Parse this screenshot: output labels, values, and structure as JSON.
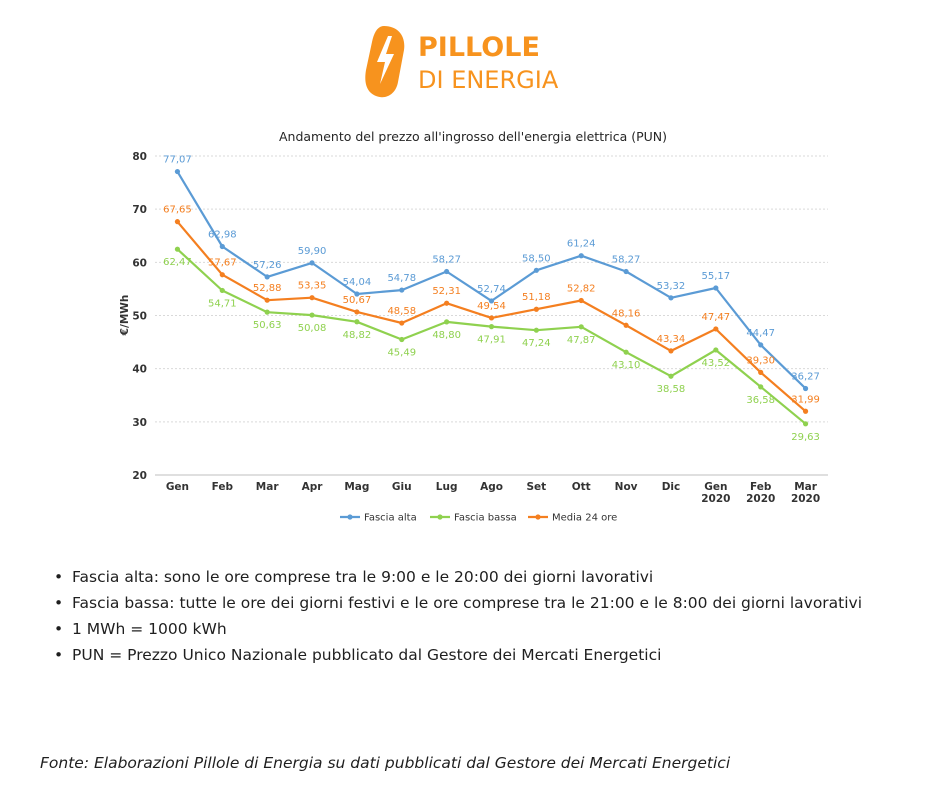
{
  "logo": {
    "line1": "PILLOLE",
    "line2": "DI ENERGIA",
    "brand_color": "#f7931e",
    "icon": "lightning-bolt-icon"
  },
  "chart_data": {
    "type": "line",
    "title": "Andamento del prezzo all'ingrosso dell'energia elettrica (PUN)",
    "ylabel": "€/MWh",
    "xlabel": "",
    "ylim": [
      20,
      80
    ],
    "yticks": [
      20,
      30,
      40,
      50,
      60,
      70,
      80
    ],
    "grid": true,
    "legend_position": "bottom",
    "categories": [
      [
        "Gen"
      ],
      [
        "Feb"
      ],
      [
        "Mar"
      ],
      [
        "Apr"
      ],
      [
        "Mag"
      ],
      [
        "Giu"
      ],
      [
        "Lug"
      ],
      [
        "Ago"
      ],
      [
        "Set"
      ],
      [
        "Ott"
      ],
      [
        "Nov"
      ],
      [
        "Dic"
      ],
      [
        "Gen",
        "2020"
      ],
      [
        "Feb",
        "2020"
      ],
      [
        "Mar",
        "2020"
      ]
    ],
    "series": [
      {
        "name": "Fascia alta",
        "color": "#5b9bd5",
        "values": [
          77.07,
          62.98,
          57.26,
          59.9,
          54.04,
          54.78,
          58.27,
          52.74,
          58.5,
          61.24,
          58.27,
          53.32,
          55.17,
          44.47,
          36.27
        ],
        "labels": [
          "77,07",
          "62,98",
          "57,26",
          "59,90",
          "54,04",
          "54,78",
          "58,27",
          "52,74",
          "58,50",
          "61,24",
          "58,27",
          "53,32",
          "55,17",
          "44,47",
          "36,27"
        ]
      },
      {
        "name": "Fascia bassa",
        "color": "#8fd14f",
        "values": [
          62.47,
          54.71,
          50.63,
          50.08,
          48.82,
          45.49,
          48.8,
          47.91,
          47.24,
          47.87,
          43.1,
          38.58,
          43.52,
          36.58,
          29.63
        ],
        "labels": [
          "62,47",
          "54,71",
          "50,63",
          "50,08",
          "48,82",
          "45,49",
          "48,80",
          "47,91",
          "47,24",
          "47,87",
          "43,10",
          "38,58",
          "43,52",
          "36,58",
          "29,63"
        ]
      },
      {
        "name": "Media 24 ore",
        "color": "#f47f20",
        "values": [
          67.65,
          57.67,
          52.88,
          53.35,
          50.67,
          48.58,
          52.31,
          49.54,
          51.18,
          52.82,
          48.16,
          43.34,
          47.47,
          39.3,
          31.99
        ],
        "labels": [
          "67,65",
          "57,67",
          "52,88",
          "53,35",
          "50,67",
          "48,58",
          "52,31",
          "49,54",
          "51,18",
          "52,82",
          "48,16",
          "43,34",
          "47,47",
          "39,30",
          "31,99"
        ]
      }
    ]
  },
  "notes": [
    "Fascia alta: sono le ore comprese tra le 9:00 e le 20:00 dei giorni lavorativi",
    "Fascia bassa: tutte le ore dei giorni festivi e le ore comprese tra le 21:00 e le 8:00 dei giorni lavorativi",
    "1 MWh = 1000 kWh",
    "PUN = Prezzo Unico Nazionale pubblicato dal Gestore dei Mercati Energetici"
  ],
  "source": "Fonte: Elaborazioni Pillole di Energia su dati pubblicati dal Gestore dei Mercati Energetici"
}
